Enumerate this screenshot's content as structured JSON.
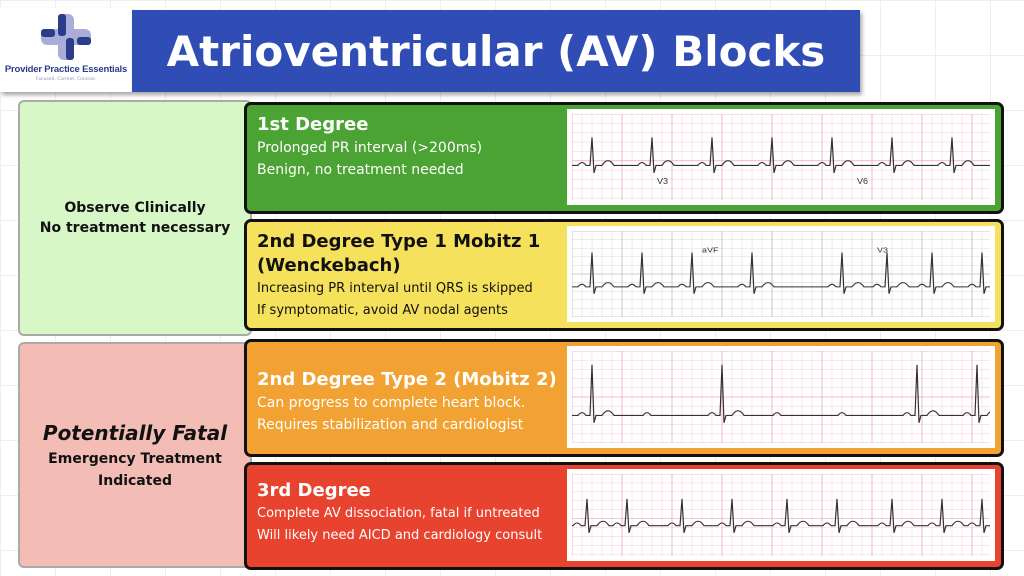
{
  "logo": {
    "name": "Provider Practice Essentials",
    "tagline": "Focused.  Current.  Concise.",
    "color": "#2b3c8a"
  },
  "title": "Atrioventricular (AV) Blocks",
  "left_panels": [
    {
      "lines": [
        "Observe Clinically",
        "No treatment necessary"
      ],
      "color": "#d8f7c6"
    },
    {
      "headline": "Potentially Fatal",
      "lines": [
        "Emergency Treatment",
        "Indicated"
      ],
      "color": "#f3bdb6"
    }
  ],
  "cards": [
    {
      "title": "1st Degree",
      "lines": [
        "Prolonged PR interval (>200ms)",
        "Benign, no treatment needed"
      ],
      "color": "#4ba333",
      "strip": {
        "grid": "pink",
        "labels": [
          "V3",
          "V6"
        ]
      }
    },
    {
      "title": "2nd Degree Type 1 Mobitz  1 (Wenckebach)",
      "lines": [
        "Increasing PR interval until QRS is skipped",
        "If symptomatic, avoid AV nodal agents"
      ],
      "color": "#f6e15c",
      "strip": {
        "grid": "grey",
        "labels": [
          "aVF",
          "V3"
        ]
      }
    },
    {
      "title": "2nd Degree Type 2 (Mobitz 2)",
      "lines": [
        "Can progress to complete heart block.",
        "Requires stabilization and cardiologist"
      ],
      "color": "#f1a232",
      "strip": {
        "grid": "pink",
        "labels": []
      }
    },
    {
      "title": "3rd Degree",
      "lines": [
        "Complete AV dissociation, fatal if untreated",
        "Will likely need AICD and cardiology consult"
      ],
      "color": "#e8432f",
      "strip": {
        "grid": "pink",
        "labels": []
      }
    }
  ]
}
